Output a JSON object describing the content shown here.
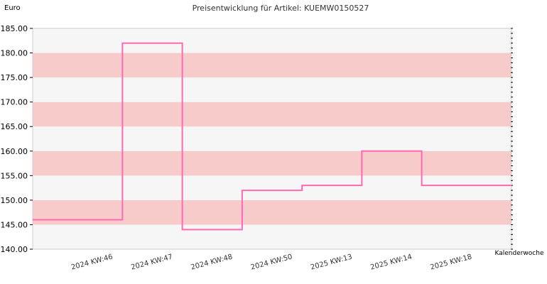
{
  "chart_data": {
    "type": "line",
    "step": true,
    "title": "Preisentwicklung für Artikel: KUEMW0150527",
    "ylabel": "Euro",
    "xlabel": "Kalenderwoche",
    "categories": [
      "2024 KW:46",
      "2024 KW:47",
      "2024 KW:48",
      "2024 KW:50",
      "2025 KW:13",
      "2025 KW:14",
      "2025 KW:18"
    ],
    "values": [
      146,
      182,
      144,
      152,
      153,
      160,
      153
    ],
    "ylim": [
      140,
      185
    ],
    "yticks": [
      "140.00",
      "145.00",
      "150.00",
      "155.00",
      "160.00",
      "165.00",
      "170.00",
      "175.00",
      "180.00",
      "185.00"
    ],
    "grid": "alternating horizontal bands",
    "colors": {
      "line": "#ff69b4",
      "band": "#f8cbcb",
      "band_alt": "#f6f6f6",
      "frame": "#cccccc"
    }
  }
}
